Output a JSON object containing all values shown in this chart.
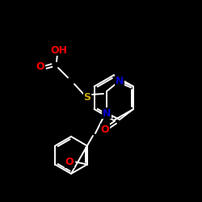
{
  "bg_color": "#000000",
  "bond_color": "#ffffff",
  "atom_colors": {
    "O": "#ff0000",
    "N": "#0000cd",
    "S": "#ccaa00",
    "C": "#ffffff"
  },
  "figsize": [
    2.5,
    2.5
  ],
  "dpi": 100,
  "lw": 1.4,
  "ring_lw": 1.4,
  "fontsize": 8.5
}
